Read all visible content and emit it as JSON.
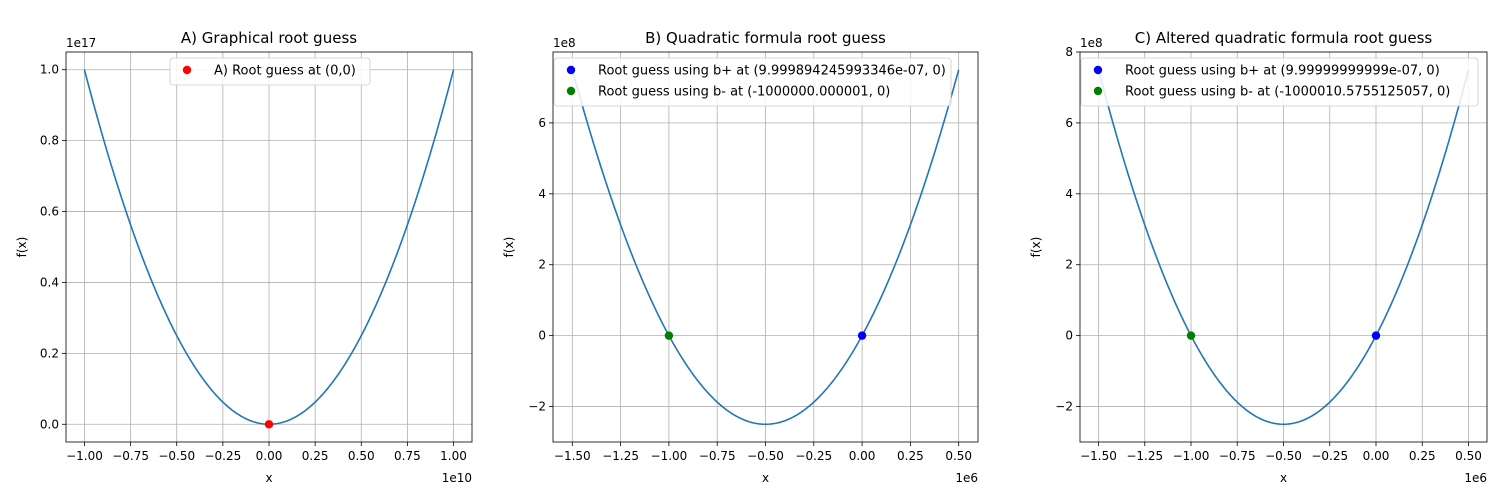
{
  "colors": {
    "curve": "#1f77b4",
    "grid": "#b0b0b0",
    "red": "#ff0000",
    "blue": "#0000ff",
    "green": "#008000"
  },
  "chart_data": [
    {
      "type": "line",
      "title": "A) Graphical root guess",
      "xlabel": "x",
      "ylabel": "f(x)",
      "x_offset_text": "1e10",
      "y_offset_text": "1e17",
      "xlim": [
        -1.1,
        1.1
      ],
      "ylim": [
        -0.05,
        1.05
      ],
      "x_ticks": [
        -1.0,
        -0.75,
        -0.5,
        -0.25,
        0.0,
        0.25,
        0.5,
        0.75,
        1.0
      ],
      "x_tick_labels": [
        "−1.00",
        "−0.75",
        "−0.50",
        "−0.25",
        "0.00",
        "0.25",
        "0.50",
        "0.75",
        "1.00"
      ],
      "y_ticks": [
        0.0,
        0.2,
        0.4,
        0.6,
        0.8,
        1.0
      ],
      "y_tick_labels": [
        "0.0",
        "0.2",
        "0.4",
        "0.6",
        "0.8",
        "1.0"
      ],
      "grid": true,
      "legend_position": "upper center",
      "curve": {
        "x_range": [
          -1.0,
          1.0
        ],
        "coefficients": [
          1.0,
          0.0,
          0.0
        ]
      },
      "points": [
        {
          "label": "A) Root guess at (0,0)",
          "x": 0,
          "y": 0,
          "color": "red"
        }
      ]
    },
    {
      "type": "line",
      "title": "B) Quadratic formula root guess",
      "xlabel": "x",
      "ylabel": "f(x)",
      "x_offset_text": "1e6",
      "y_offset_text": "1e8",
      "xlim": [
        -1.6,
        0.6
      ],
      "ylim": [
        -3.0,
        8.0
      ],
      "x_ticks": [
        -1.5,
        -1.25,
        -1.0,
        -0.75,
        -0.5,
        -0.25,
        0.0,
        0.25,
        0.5
      ],
      "x_tick_labels": [
        "−1.50",
        "−1.25",
        "−1.00",
        "−0.75",
        "−0.50",
        "−0.25",
        "0.00",
        "0.25",
        "0.50"
      ],
      "y_ticks": [
        -2,
        0,
        2,
        4,
        6
      ],
      "y_tick_labels": [
        "−2",
        "0",
        "2",
        "4",
        "6"
      ],
      "grid": true,
      "legend_position": "upper center",
      "curve": {
        "x_range": [
          -1.5,
          0.5
        ],
        "coefficients": [
          10.0,
          10.0,
          0.0
        ]
      },
      "points": [
        {
          "label": "Root guess using b+ at (9.999894245993346e-07, 0)",
          "x": 0.0,
          "y": 0,
          "color": "blue"
        },
        {
          "label": "Root guess using b- at (-1000000.000001, 0)",
          "x": -1.0,
          "y": 0,
          "color": "green"
        }
      ]
    },
    {
      "type": "line",
      "title": "C) Altered quadratic formula root guess",
      "xlabel": "x",
      "ylabel": "f(x)",
      "x_offset_text": "1e6",
      "y_offset_text": "1e8",
      "xlim": [
        -1.6,
        0.6
      ],
      "ylim": [
        -3.0,
        8.0
      ],
      "x_ticks": [
        -1.5,
        -1.25,
        -1.0,
        -0.75,
        -0.5,
        -0.25,
        0.0,
        0.25,
        0.5
      ],
      "x_tick_labels": [
        "−1.50",
        "−1.25",
        "−1.00",
        "−0.75",
        "−0.50",
        "−0.25",
        "0.00",
        "0.25",
        "0.50"
      ],
      "y_ticks": [
        -2,
        0,
        2,
        4,
        6,
        8
      ],
      "y_tick_labels": [
        "−2",
        "0",
        "2",
        "4",
        "6",
        "8"
      ],
      "grid": true,
      "legend_position": "upper center",
      "curve": {
        "x_range": [
          -1.5,
          0.5
        ],
        "coefficients": [
          10.0,
          10.0,
          0.0
        ]
      },
      "points": [
        {
          "label": "Root guess using b+ at (9.99999999999e-07, 0)",
          "x": 0.0,
          "y": 0,
          "color": "blue"
        },
        {
          "label": "Root guess using b- at (-1000010.5755125057, 0)",
          "x": -1.0,
          "y": 0,
          "color": "green"
        }
      ]
    }
  ]
}
